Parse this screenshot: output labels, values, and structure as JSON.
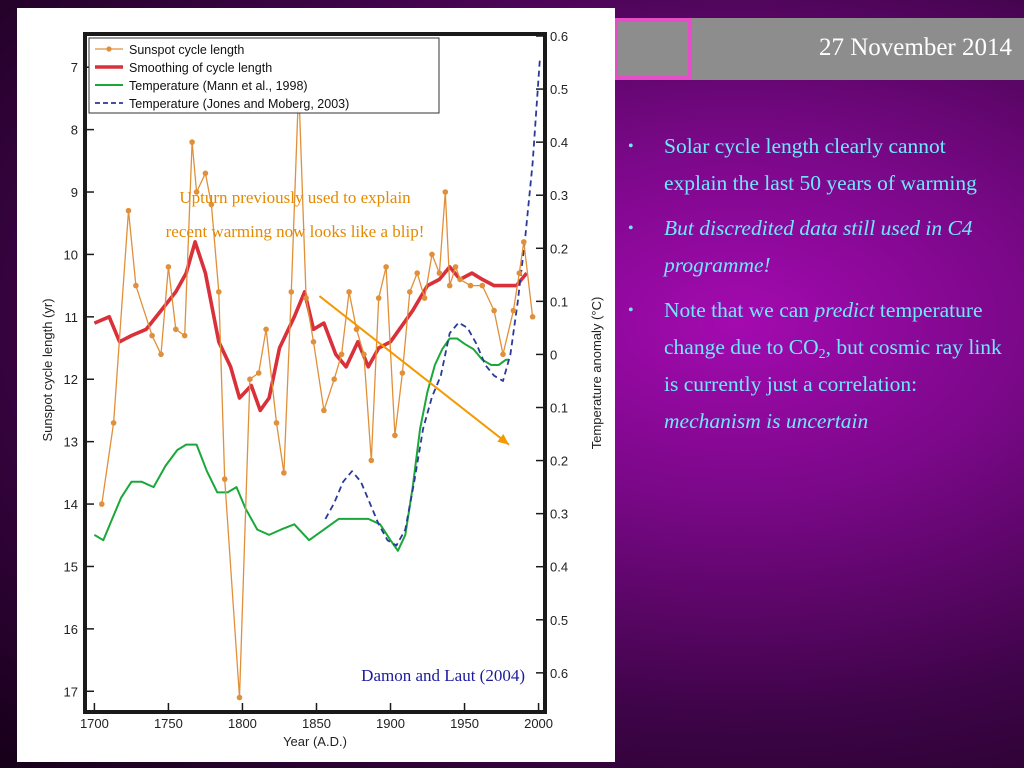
{
  "date": "27 November 2014",
  "bullets": {
    "b1": "Solar cycle length clearly cannot explain the last 50 years of warming",
    "b2": "But discredited data still used in C4 programme!",
    "b3_a": "Note that we can ",
    "b3_b": "predict",
    "b3_c": " temperature change due to CO",
    "b3_sub": "2",
    "b3_d": ", but cosmic ray link is currently just a correlation: ",
    "b3_e": "mechanism is uncertain"
  },
  "annotation": {
    "line1": "Upturn previously used to explain",
    "line2": "recent warming now looks like a blip!"
  },
  "credit": "Damon and Laut (2004)",
  "colors": {
    "sunspot": "#e0903a",
    "smoothing": "#d9303a",
    "mann": "#1aa83a",
    "jones": "#2a3a9a",
    "arrow": "#f29a00",
    "bullet_text": "#6fe8ff"
  },
  "chart_data": {
    "type": "line",
    "xlabel": "Year  (A.D.)",
    "ylabel_left": "Sunspot  cycle  length  (yr)",
    "ylabel_right": "Temperature  anomaly  (°C)",
    "xlim": [
      1695,
      2003
    ],
    "ylim_left": [
      17.3,
      6.5
    ],
    "ylim_right": [
      -0.67,
      0.6
    ],
    "x_ticks": [
      1700,
      1750,
      1800,
      1850,
      1900,
      1950,
      2000
    ],
    "left_ticks": [
      7,
      8,
      9,
      10,
      11,
      12,
      13,
      14,
      15,
      16,
      17
    ],
    "right_ticks": [
      0.6,
      0.5,
      0.4,
      0.3,
      0.2,
      0.1,
      0.0,
      -0.1,
      -0.2,
      -0.3,
      -0.4,
      -0.5,
      -0.6
    ],
    "right_tick_labels": [
      "0.6",
      "0.5",
      "0.4",
      "0.3",
      "0.2",
      "0.1",
      "0",
      "0.1",
      "0.2",
      "0.3",
      "0.4",
      "0.5",
      "0.6"
    ],
    "legend": [
      "Sunspot  cycle  length",
      "Smoothing  of  cycle  length",
      "Temperature  (Mann  et  al.,  1998)",
      "Temperature  (Jones  and  Moberg,  2003)"
    ],
    "series": [
      {
        "name": "Sunspot  cycle  length",
        "axis": "left",
        "x": [
          1705,
          1713,
          1723,
          1728,
          1739,
          1745,
          1750,
          1755,
          1761,
          1766,
          1769,
          1775,
          1779,
          1784,
          1788,
          1798,
          1805,
          1811,
          1816,
          1823,
          1828,
          1833,
          1838,
          1843,
          1848,
          1855,
          1862,
          1867,
          1872,
          1877,
          1882,
          1887,
          1892,
          1897,
          1903,
          1908,
          1913,
          1918,
          1923,
          1928,
          1933,
          1937,
          1940,
          1944,
          1947,
          1954,
          1962,
          1970,
          1976,
          1983,
          1987,
          1990,
          1996
        ],
        "y": [
          14.0,
          12.7,
          9.3,
          10.5,
          11.3,
          11.6,
          10.2,
          11.2,
          11.3,
          8.2,
          9.0,
          8.7,
          9.2,
          10.6,
          13.6,
          17.1,
          12.0,
          11.9,
          11.2,
          12.7,
          13.5,
          10.6,
          7.3,
          10.7,
          11.4,
          12.5,
          12.0,
          11.6,
          10.6,
          11.2,
          11.6,
          13.3,
          10.7,
          10.2,
          12.9,
          11.9,
          10.6,
          10.3,
          10.7,
          10.0,
          10.3,
          9.0,
          10.5,
          10.2,
          10.4,
          10.5,
          10.5,
          10.9,
          11.6,
          10.9,
          10.3,
          9.8,
          11.0
        ]
      },
      {
        "name": "Smoothing  of  cycle  length",
        "axis": "left",
        "x": [
          1700,
          1710,
          1717,
          1725,
          1735,
          1745,
          1755,
          1762,
          1768,
          1775,
          1784,
          1792,
          1798,
          1806,
          1812,
          1818,
          1825,
          1835,
          1842,
          1848,
          1855,
          1863,
          1870,
          1878,
          1885,
          1892,
          1900,
          1906,
          1915,
          1925,
          1933,
          1940,
          1947,
          1955,
          1962,
          1970,
          1978,
          1985,
          1992
        ],
        "y": [
          11.1,
          11.0,
          11.4,
          11.3,
          11.2,
          10.9,
          10.6,
          10.3,
          9.8,
          10.3,
          11.4,
          11.8,
          12.3,
          12.1,
          12.5,
          12.3,
          11.5,
          11.0,
          10.6,
          11.2,
          11.1,
          11.6,
          11.8,
          11.4,
          11.8,
          11.5,
          11.4,
          11.2,
          10.9,
          10.5,
          10.4,
          10.2,
          10.4,
          10.3,
          10.4,
          10.5,
          10.5,
          10.5,
          10.3
        ]
      },
      {
        "name": "Temperature  (Mann  et  al.,  1998)",
        "axis": "right",
        "x": [
          1700,
          1706,
          1712,
          1718,
          1725,
          1732,
          1740,
          1748,
          1756,
          1762,
          1769,
          1776,
          1783,
          1790,
          1796,
          1802,
          1810,
          1818,
          1826,
          1835,
          1845,
          1855,
          1865,
          1875,
          1885,
          1893,
          1900,
          1905,
          1910,
          1915,
          1920,
          1925,
          1930,
          1935,
          1940,
          1945,
          1950,
          1956,
          1962,
          1968,
          1973,
          1978,
          1980
        ],
        "y": [
          -0.34,
          -0.35,
          -0.31,
          -0.27,
          -0.24,
          -0.24,
          -0.25,
          -0.21,
          -0.18,
          -0.17,
          -0.17,
          -0.22,
          -0.26,
          -0.26,
          -0.25,
          -0.29,
          -0.33,
          -0.34,
          -0.33,
          -0.32,
          -0.35,
          -0.33,
          -0.31,
          -0.31,
          -0.31,
          -0.32,
          -0.35,
          -0.37,
          -0.34,
          -0.25,
          -0.14,
          -0.07,
          -0.02,
          0.01,
          0.03,
          0.03,
          0.02,
          0.01,
          -0.01,
          -0.02,
          -0.02,
          -0.01,
          -0.01
        ]
      },
      {
        "name": "Temperature  (Jones  and  Moberg,  2003)",
        "axis": "right",
        "x": [
          1856,
          1862,
          1868,
          1874,
          1880,
          1886,
          1892,
          1898,
          1904,
          1910,
          1916,
          1922,
          1928,
          1934,
          1940,
          1946,
          1952,
          1958,
          1964,
          1970,
          1976,
          1981,
          1986,
          1991,
          1996,
          2001
        ],
        "y": [
          -0.31,
          -0.28,
          -0.24,
          -0.22,
          -0.24,
          -0.28,
          -0.32,
          -0.35,
          -0.36,
          -0.33,
          -0.24,
          -0.14,
          -0.08,
          -0.04,
          0.04,
          0.06,
          0.05,
          0.02,
          -0.02,
          -0.04,
          -0.05,
          0.0,
          0.1,
          0.22,
          0.36,
          0.56
        ]
      }
    ],
    "arrow": {
      "from": [
        1852,
        0.11
      ],
      "to": [
        1980,
        -0.17
      ]
    }
  }
}
